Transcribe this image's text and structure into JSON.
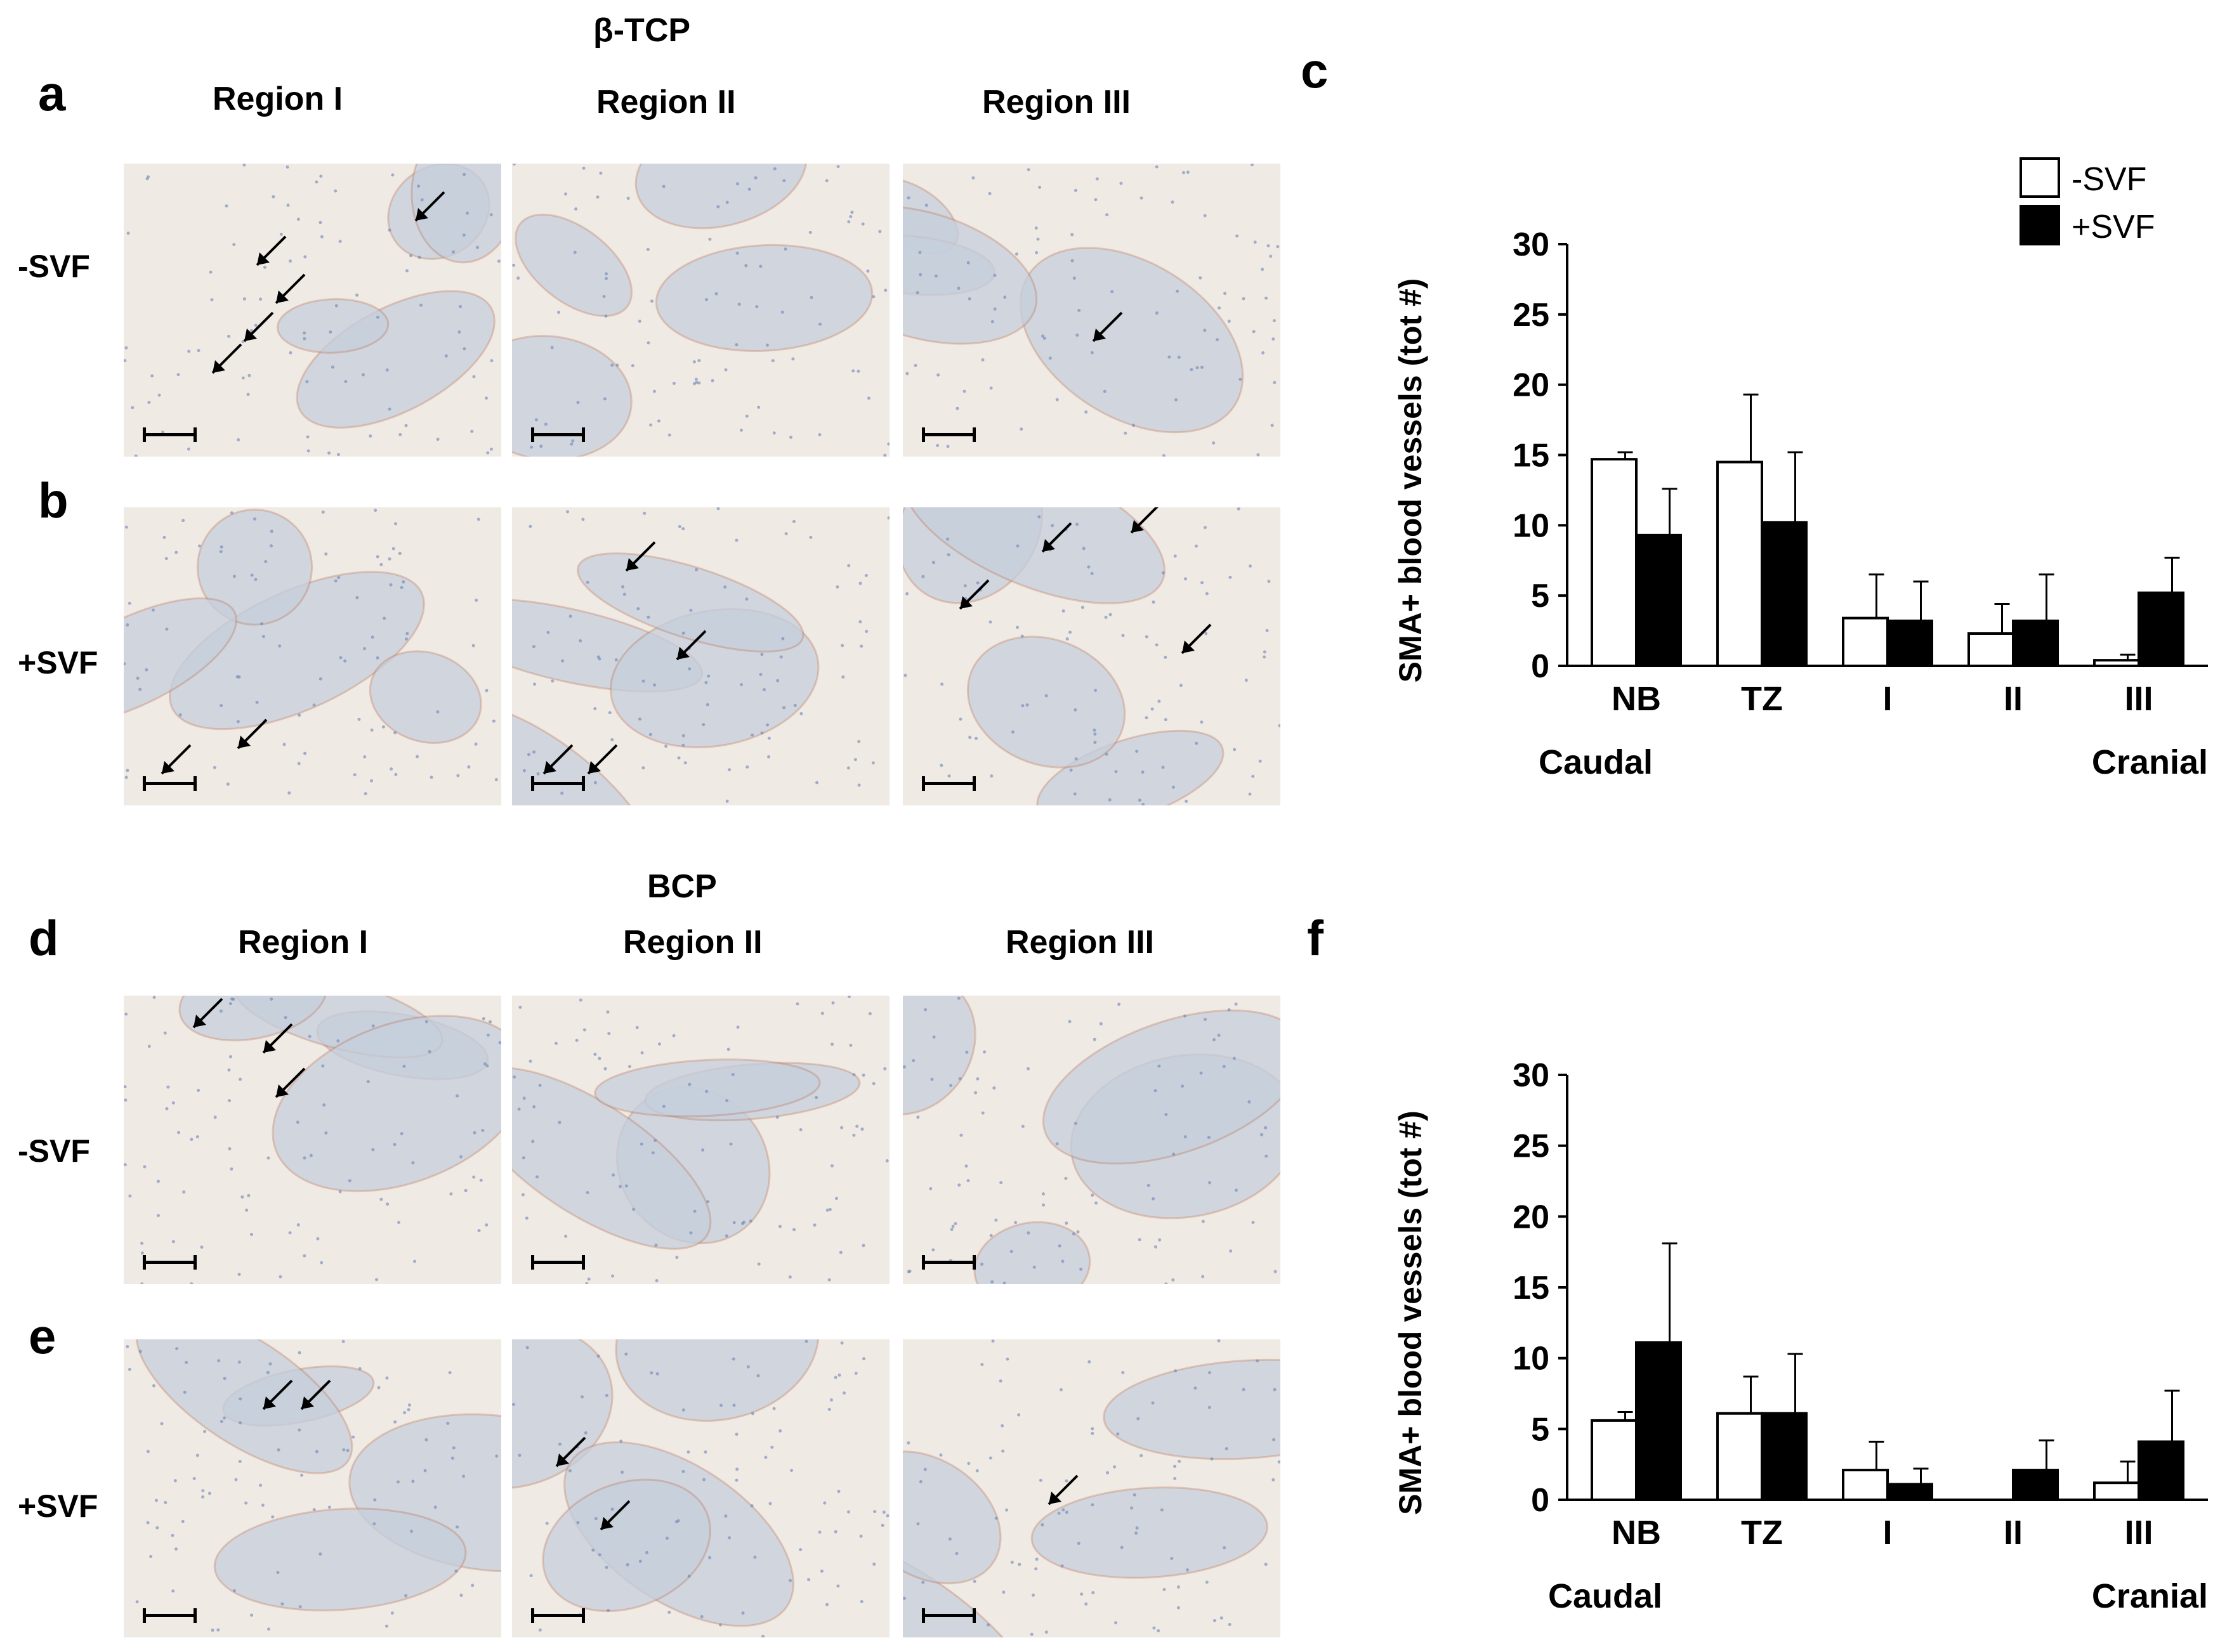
{
  "figure": {
    "panel_letters": [
      "a",
      "b",
      "c",
      "d",
      "e",
      "f"
    ],
    "top": {
      "material": "β-TCP",
      "regions": [
        "Region I",
        "Region II",
        "Region III"
      ],
      "rows": [
        "-SVF",
        "+SVF"
      ]
    },
    "bottom": {
      "material": "BCP",
      "regions": [
        "Region I",
        "Region II",
        "Region III"
      ],
      "rows": [
        "-SVF",
        "+SVF"
      ]
    },
    "colors": {
      "tissue_bg": "#efeae4",
      "scaffold": "#c6cfdc",
      "stain": "#b8562f",
      "cell": "#6c84b6"
    }
  },
  "chart_data": [
    {
      "type": "bar",
      "panel": "c",
      "categories": [
        "NB",
        "TZ",
        "I",
        "II",
        "III"
      ],
      "series": [
        {
          "name": "-SVF",
          "values": [
            14.7,
            14.5,
            3.4,
            2.3,
            0.4
          ],
          "errors": [
            0.5,
            4.8,
            3.1,
            2.1,
            0.4
          ],
          "color": "#ffffff"
        },
        {
          "name": "+SVF",
          "values": [
            9.3,
            10.2,
            3.2,
            3.2,
            5.2
          ],
          "errors": [
            3.3,
            5.0,
            2.8,
            3.3,
            2.5
          ],
          "color": "#000000"
        }
      ],
      "ylabel": "SMA+ blood vessels (tot #)",
      "ylim": [
        0,
        30
      ],
      "yticks": [
        "0",
        "5",
        "10",
        "15",
        "20",
        "25",
        "30"
      ],
      "bottom_labels": [
        "Caudal",
        "Cranial"
      ],
      "legend_position": "top-right"
    },
    {
      "type": "bar",
      "panel": "f",
      "categories": [
        "NB",
        "TZ",
        "I",
        "II",
        "III"
      ],
      "series": [
        {
          "name": "-SVF",
          "values": [
            5.6,
            6.1,
            2.1,
            0,
            1.2
          ],
          "errors": [
            0.6,
            2.6,
            2.0,
            0,
            1.5
          ],
          "color": "#ffffff"
        },
        {
          "name": "+SVF",
          "values": [
            11.1,
            6.1,
            1.1,
            2.1,
            4.1
          ],
          "errors": [
            7.0,
            4.2,
            1.1,
            2.1,
            3.6
          ],
          "color": "#000000"
        }
      ],
      "ylabel": "SMA+ blood vessels (tot #)",
      "ylim": [
        0,
        30
      ],
      "yticks": [
        "0",
        "5",
        "10",
        "15",
        "20",
        "25",
        "30"
      ],
      "bottom_labels": [
        "Caudal",
        "Cranial"
      ]
    }
  ]
}
